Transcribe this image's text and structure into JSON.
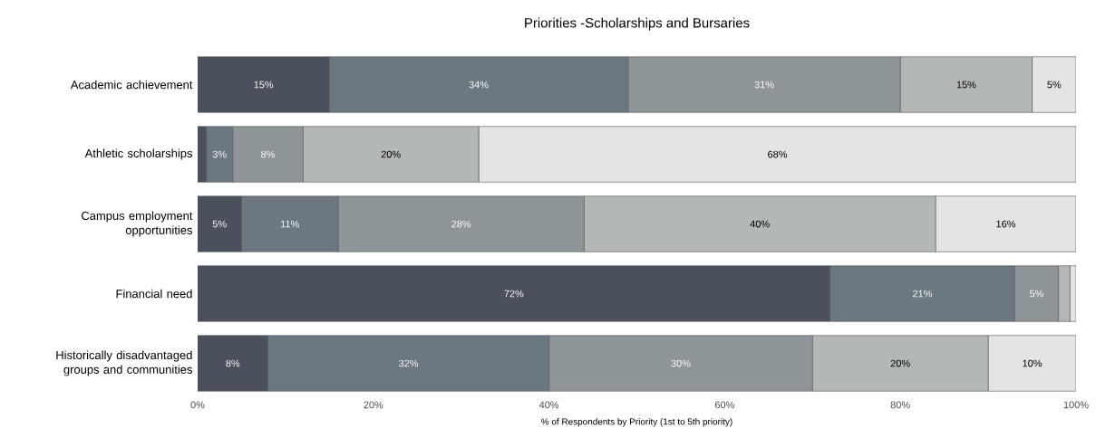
{
  "chart_data": {
    "type": "bar",
    "orientation": "horizontal",
    "stacked": true,
    "title": "Priorities -Scholarships and Bursaries",
    "xlabel": "% of Respondents by Priority (1st to 5th priority)",
    "categories": [
      "Academic achievement",
      "Athletic scholarships",
      "Campus employment opportunities",
      "Financial need",
      "Historically disadvantaged groups and communities"
    ],
    "xlim": [
      0,
      100
    ],
    "xticks": [
      {
        "value": 0,
        "label": "0%"
      },
      {
        "value": 20,
        "label": "20%"
      },
      {
        "value": 40,
        "label": "40%"
      },
      {
        "value": 60,
        "label": "60%"
      },
      {
        "value": 80,
        "label": "80%"
      },
      {
        "value": 100,
        "label": "100%"
      }
    ],
    "series": [
      {
        "color": "#4a505c",
        "values": [
          15,
          1,
          5,
          72,
          8
        ],
        "value_labels": [
          "15%",
          null,
          "5%",
          "72%",
          "8%"
        ]
      },
      {
        "color": "#6c7880",
        "values": [
          34,
          3,
          11,
          21,
          32
        ],
        "value_labels": [
          "34%",
          "3%",
          "11%",
          "21%",
          "32%"
        ]
      },
      {
        "color": "#8e9598",
        "values": [
          31,
          8,
          28,
          5,
          30
        ],
        "value_labels": [
          "31%",
          "8%",
          "28%",
          "5%",
          "30%"
        ]
      },
      {
        "color": "#b3b7b8",
        "values": [
          15,
          20,
          40,
          1.3,
          20
        ],
        "value_labels": [
          "15%",
          "20%",
          "40%",
          null,
          "20%"
        ]
      },
      {
        "color": "#e4e4e4",
        "values": [
          5,
          68,
          16,
          0.7,
          10
        ],
        "value_labels": [
          "5%",
          "68%",
          "16%",
          null,
          "10%"
        ]
      }
    ],
    "grid": false
  }
}
